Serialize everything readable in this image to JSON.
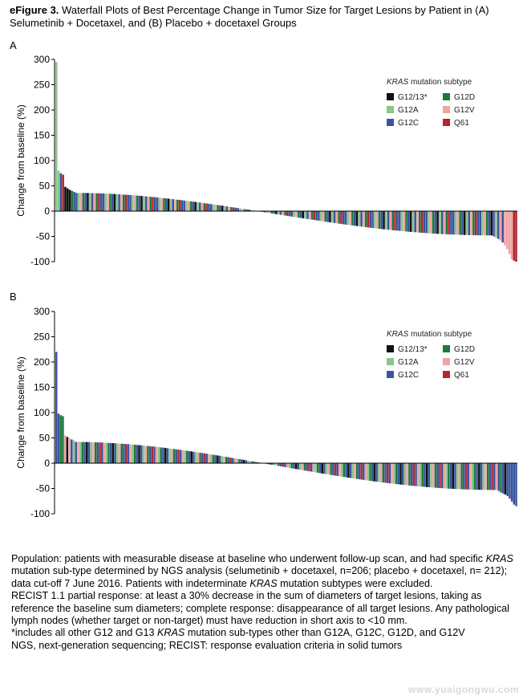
{
  "figure": {
    "label": "eFigure 3.",
    "title": "Waterfall Plots of Best Percentage Change in Tumor Size for Target Lesions by Patient in (A) Selumetinib + Docetaxel, and (B) Placebo + docetaxel Groups"
  },
  "legend": {
    "title_italic": "KRAS",
    "title_rest": " mutation subtype",
    "items": [
      {
        "label": "G12/13*",
        "color": "#111111"
      },
      {
        "label": "G12D",
        "color": "#1a7a3a"
      },
      {
        "label": "G12A",
        "color": "#8cc68a"
      },
      {
        "label": "G12V",
        "color": "#f0a4a4"
      },
      {
        "label": "G12C",
        "color": "#3a55a0"
      },
      {
        "label": "Q61",
        "color": "#b3262c"
      }
    ]
  },
  "chart_data": [
    {
      "panel": "A",
      "type": "bar",
      "ylabel": "Change from baseline (%)",
      "ylim": [
        -100,
        300
      ],
      "yticks": [
        "300",
        "250",
        "200",
        "150",
        "100",
        "50",
        "0",
        "-50",
        "-100"
      ],
      "n_patients": 206,
      "head": [
        {
          "value": 295,
          "subtype": "G12A"
        },
        {
          "value": 80,
          "subtype": "G12A"
        },
        {
          "value": 75,
          "subtype": "G12C"
        },
        {
          "value": 72,
          "subtype": "Q61"
        },
        {
          "value": 48,
          "subtype": "G12/13*"
        },
        {
          "value": 45,
          "subtype": "G12/13*"
        },
        {
          "value": 42,
          "subtype": "G12/13*"
        },
        {
          "value": 40,
          "subtype": "G12D"
        },
        {
          "value": 38,
          "subtype": "G12C"
        }
      ],
      "tail": [
        {
          "value": -50,
          "subtype": "G12C"
        },
        {
          "value": -52,
          "subtype": "G12A"
        },
        {
          "value": -55,
          "subtype": "G12C"
        },
        {
          "value": -58,
          "subtype": "G12V"
        },
        {
          "value": -62,
          "subtype": "G12C"
        },
        {
          "value": -68,
          "subtype": "G12V"
        },
        {
          "value": -75,
          "subtype": "G12V"
        },
        {
          "value": -85,
          "subtype": "G12V"
        },
        {
          "value": -95,
          "subtype": "G12V"
        },
        {
          "value": -98,
          "subtype": "Q61"
        },
        {
          "value": -100,
          "subtype": "Q61"
        }
      ],
      "body_start": 36,
      "body_end": -48,
      "subtype_cycle": [
        "G12C",
        "G12A",
        "G12V",
        "G12D",
        "G12C",
        "G12/13*",
        "G12A",
        "G12C",
        "G12V",
        "G12D",
        "Q61",
        "G12C"
      ]
    },
    {
      "panel": "B",
      "type": "bar",
      "ylabel": "Change from baseline (%)",
      "ylim": [
        -100,
        300
      ],
      "yticks": [
        "300",
        "250",
        "200",
        "150",
        "100",
        "50",
        "0",
        "-50",
        "-100"
      ],
      "n_patients": 212,
      "head": [
        {
          "value": 220,
          "subtype": "G12C"
        },
        {
          "value": 98,
          "subtype": "G12C"
        },
        {
          "value": 95,
          "subtype": "G12D"
        },
        {
          "value": 93,
          "subtype": "G12D"
        },
        {
          "value": 55,
          "subtype": "G12V"
        },
        {
          "value": 52,
          "subtype": "G12/13*"
        },
        {
          "value": 50,
          "subtype": "G12V"
        },
        {
          "value": 47,
          "subtype": "G12C"
        },
        {
          "value": 45,
          "subtype": "G12A"
        }
      ],
      "tail": [
        {
          "value": -55,
          "subtype": "G12C"
        },
        {
          "value": -58,
          "subtype": "G12D"
        },
        {
          "value": -60,
          "subtype": "G12C"
        },
        {
          "value": -62,
          "subtype": "G12/13*"
        },
        {
          "value": -65,
          "subtype": "G12C"
        },
        {
          "value": -70,
          "subtype": "G12C"
        },
        {
          "value": -76,
          "subtype": "G12C"
        },
        {
          "value": -82,
          "subtype": "G12C"
        },
        {
          "value": -85,
          "subtype": "G12C"
        }
      ],
      "body_start": 42,
      "body_end": -53,
      "subtype_cycle": [
        "G12C",
        "G12V",
        "G12A",
        "G12D",
        "G12C",
        "G12/13*",
        "G12C",
        "G12A",
        "G12V",
        "G12D",
        "G12C",
        "Q61"
      ]
    }
  ],
  "caption": {
    "p1_a": "Population: patients with measurable disease at baseline who underwent follow-up scan, and had specific ",
    "p1_kras": "KRAS",
    "p1_b": " mutation sub-type determined by NGS analysis (selumetinib + docetaxel, n=206; placebo + docetaxel, n= 212); data cut-off 7 June 2016. Patients with indeterminate ",
    "p1_kras2": "KRAS",
    "p1_c": " mutation subtypes were excluded.",
    "p2": "RECIST 1.1 partial response: at least a 30% decrease in the sum of diameters of target lesions, taking as reference the baseline sum diameters; complete response: disappearance of all target lesions. Any pathological lymph nodes (whether target or non-target) must have reduction in short axis to <10 mm.",
    "p3_a": "*includes all other G12 and G13 ",
    "p3_kras": "KRAS",
    "p3_b": " mutation sub-types other than G12A, G12C, G12D, and G12V",
    "p4": "NGS, next-generation sequencing; RECIST: response evaluation criteria in solid tumors"
  },
  "watermark": "www.yuaigongwu.com"
}
